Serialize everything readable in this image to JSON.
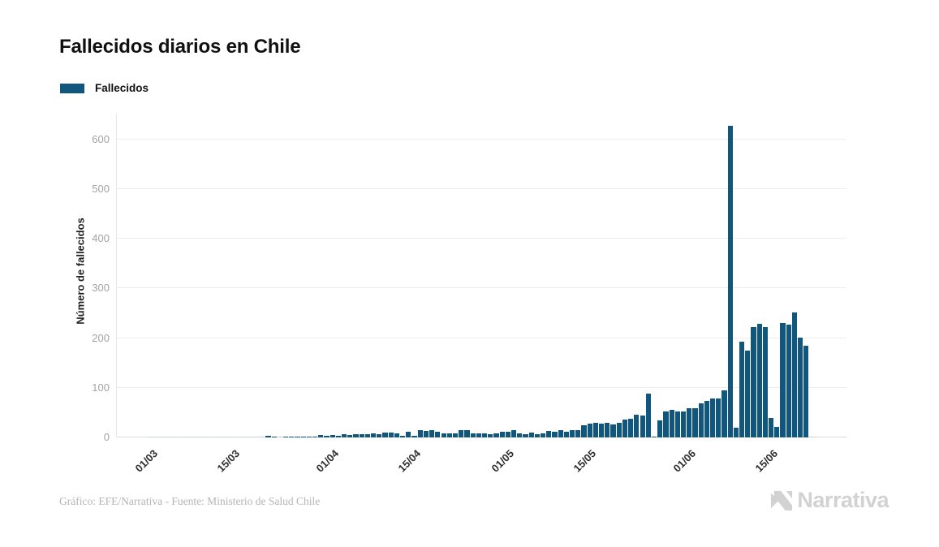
{
  "title": "Fallecidos diarios en Chile",
  "legend": {
    "label": "Fallecidos",
    "color": "#11567d"
  },
  "y_axis": {
    "title": "Número de fallecidos",
    "ticks": [
      0,
      100,
      200,
      300,
      400,
      500,
      600
    ]
  },
  "x_axis": {
    "ticks": [
      {
        "label": "01/03",
        "day_index": 0
      },
      {
        "label": "15/03",
        "day_index": 14
      },
      {
        "label": "01/04",
        "day_index": 31
      },
      {
        "label": "15/04",
        "day_index": 45
      },
      {
        "label": "01/05",
        "day_index": 61
      },
      {
        "label": "15/05",
        "day_index": 75
      },
      {
        "label": "01/06",
        "day_index": 92
      },
      {
        "label": "15/06",
        "day_index": 106
      }
    ]
  },
  "footer": {
    "credit": "Gráfico: EFE/Narrativa - Fuente: Ministerio de Salud Chile"
  },
  "logo": {
    "text": "Narrativa"
  },
  "chart_data": {
    "type": "bar",
    "title": "Fallecidos diarios en Chile",
    "series_name": "Fallecidos",
    "xlabel": "",
    "ylabel": "Número de fallecidos",
    "ylim": [
      0,
      650
    ],
    "grid": true,
    "legend_position": "top-left",
    "bar_color": "#11567d",
    "zero_bar_color": "#bdd2de",
    "x": [
      "01/03",
      "02/03",
      "03/03",
      "04/03",
      "05/03",
      "06/03",
      "07/03",
      "08/03",
      "09/03",
      "10/03",
      "11/03",
      "12/03",
      "13/03",
      "14/03",
      "15/03",
      "16/03",
      "17/03",
      "18/03",
      "19/03",
      "20/03",
      "21/03",
      "22/03",
      "23/03",
      "24/03",
      "25/03",
      "26/03",
      "27/03",
      "28/03",
      "29/03",
      "30/03",
      "31/03",
      "01/04",
      "02/04",
      "03/04",
      "04/04",
      "05/04",
      "06/04",
      "07/04",
      "08/04",
      "09/04",
      "10/04",
      "11/04",
      "12/04",
      "13/04",
      "14/04",
      "15/04",
      "16/04",
      "17/04",
      "18/04",
      "19/04",
      "20/04",
      "21/04",
      "22/04",
      "23/04",
      "24/04",
      "25/04",
      "26/04",
      "27/04",
      "28/04",
      "29/04",
      "30/04",
      "01/05",
      "02/05",
      "03/05",
      "04/05",
      "05/05",
      "06/05",
      "07/05",
      "08/05",
      "09/05",
      "10/05",
      "11/05",
      "12/05",
      "13/05",
      "14/05",
      "15/05",
      "16/05",
      "17/05",
      "18/05",
      "19/05",
      "20/05",
      "21/05",
      "22/05",
      "23/05",
      "24/05",
      "25/05",
      "26/05",
      "27/05",
      "28/05",
      "29/05",
      "30/05",
      "31/05",
      "01/06",
      "02/06",
      "03/06",
      "04/06",
      "05/06",
      "06/06",
      "07/06",
      "08/06",
      "09/06",
      "10/06",
      "11/06",
      "12/06",
      "13/06",
      "14/06",
      "15/06",
      "16/06",
      "17/06",
      "18/06",
      "19/06",
      "20/06",
      "21/06",
      "22/06"
    ],
    "values": [
      0,
      0,
      0,
      0,
      0,
      0,
      0,
      0,
      0,
      0,
      0,
      0,
      0,
      0,
      0,
      0,
      0,
      0,
      0,
      0,
      3,
      1,
      0,
      1,
      2,
      2,
      2,
      1,
      2,
      5,
      4,
      5,
      4,
      6,
      5,
      7,
      6,
      7,
      8,
      7,
      10,
      10,
      9,
      4,
      12,
      4,
      14,
      13,
      14,
      11,
      9,
      8,
      9,
      15,
      14,
      9,
      8,
      8,
      7,
      8,
      11,
      12,
      14,
      9,
      7,
      10,
      6,
      9,
      13,
      11,
      14,
      11,
      15,
      15,
      25,
      27,
      29,
      27,
      30,
      26,
      29,
      36,
      38,
      45,
      44,
      88,
      2,
      35,
      52,
      55,
      53,
      53,
      59,
      59,
      68,
      74,
      78,
      79,
      94,
      627,
      20,
      193,
      174,
      222,
      229,
      222,
      39,
      21,
      231,
      227,
      252,
      201,
      185,
      0
    ]
  }
}
